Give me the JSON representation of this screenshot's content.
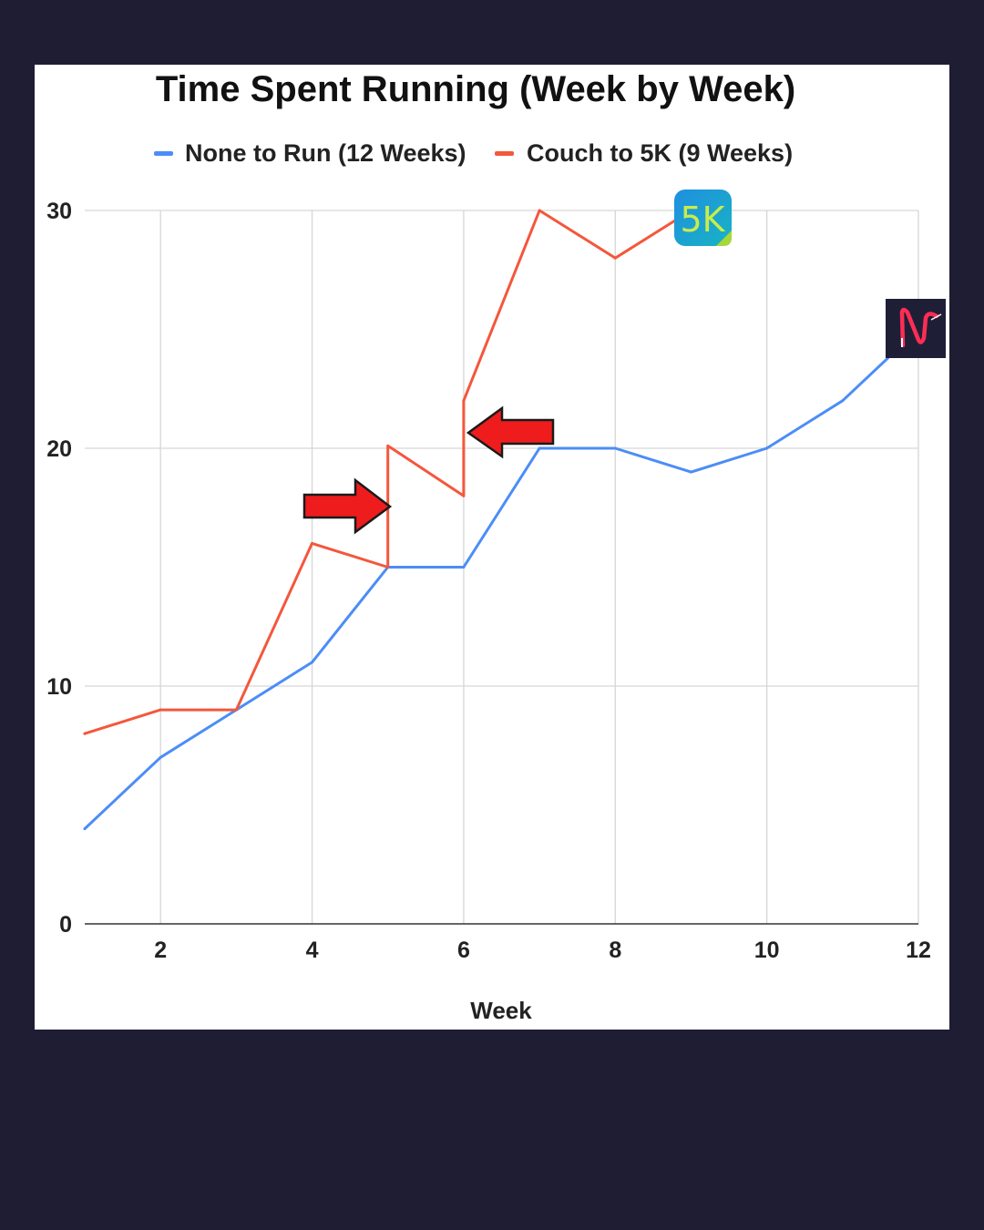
{
  "chart_data": {
    "type": "line",
    "title": "Time Spent Running (Week by Week)",
    "xlabel": "Week",
    "ylabel": "",
    "xlim": [
      1,
      12
    ],
    "ylim": [
      0,
      30
    ],
    "x_ticks": [
      "2",
      "4",
      "6",
      "8",
      "10",
      "12"
    ],
    "y_ticks": [
      "0",
      "10",
      "20",
      "30"
    ],
    "grid": true,
    "legend_position": "top",
    "series": [
      {
        "name": "None to Run (12 Weeks)",
        "color": "#4c8df6",
        "points": [
          [
            1,
            4
          ],
          [
            2,
            7
          ],
          [
            3,
            9
          ],
          [
            4,
            11
          ],
          [
            5,
            15
          ],
          [
            6,
            15
          ],
          [
            7,
            20
          ],
          [
            8,
            20
          ],
          [
            9,
            19
          ],
          [
            10,
            20
          ],
          [
            11,
            22
          ],
          [
            12,
            25
          ]
        ]
      },
      {
        "name": "Couch to 5K (9 Weeks)",
        "color": "#f4573c",
        "points": [
          [
            1,
            8
          ],
          [
            2,
            9
          ],
          [
            3,
            9
          ],
          [
            4,
            16
          ],
          [
            5,
            15
          ],
          [
            5,
            20.1
          ],
          [
            5.05,
            20
          ],
          [
            6,
            18
          ],
          [
            6,
            22
          ],
          [
            7,
            30
          ],
          [
            8,
            28
          ],
          [
            9,
            30
          ]
        ]
      }
    ],
    "annotations": [
      {
        "type": "arrow",
        "direction": "right",
        "points_to_week": 5,
        "color": "#ee1c1c"
      },
      {
        "type": "arrow",
        "direction": "left",
        "points_to_week": 6,
        "color": "#ee1c1c"
      }
    ]
  },
  "badges": {
    "couch_to_5k": {
      "text": "5K",
      "icon": "couch-to-5k-app-icon",
      "colors": [
        "#1f8fe0",
        "#19b3c4"
      ],
      "text_color": "#c9ec4a"
    },
    "none_to_run": {
      "icon": "none-to-run-app-icon",
      "background": "#1e1f36",
      "color": "#ff2d55"
    }
  }
}
